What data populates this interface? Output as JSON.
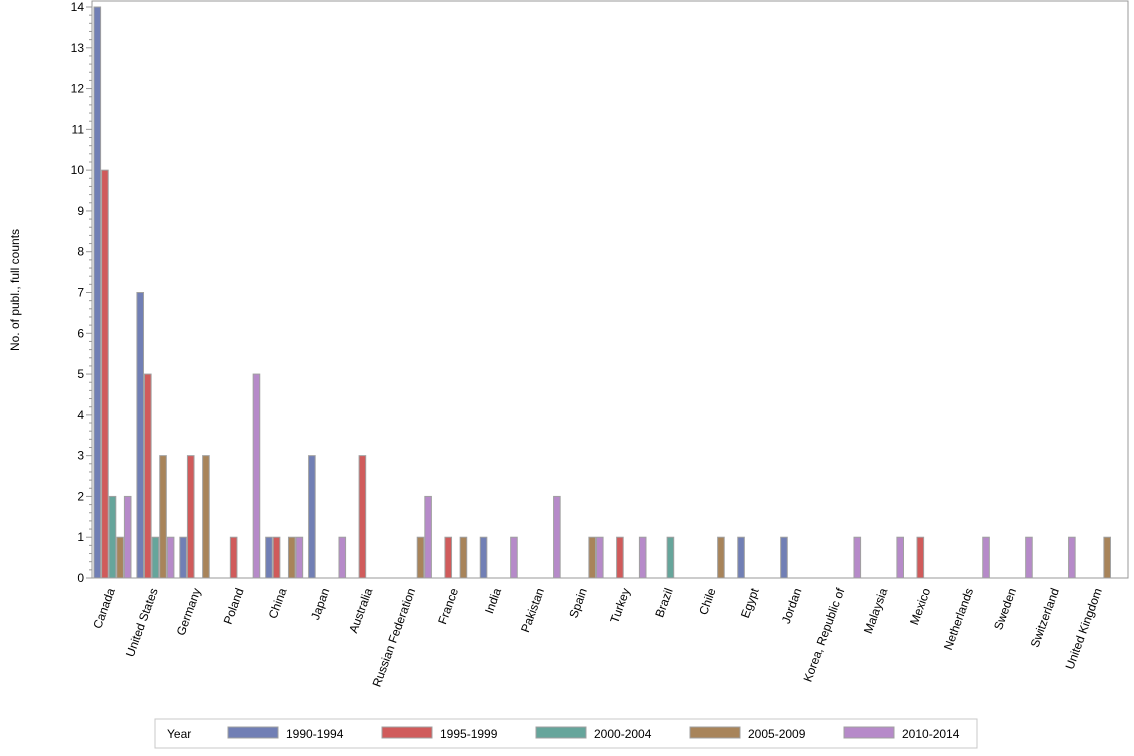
{
  "chart_data": {
    "type": "bar",
    "title": "",
    "xlabel": "",
    "ylabel": "No. of publ., full counts",
    "ylim": [
      0,
      14
    ],
    "y_ticks": [
      0,
      1,
      2,
      3,
      4,
      5,
      6,
      7,
      8,
      9,
      10,
      11,
      12,
      13,
      14
    ],
    "grid": false,
    "legend_position": "bottom",
    "legend_title": "Year",
    "categories": [
      "Canada",
      "United States",
      "Germany",
      "Poland",
      "China",
      "Japan",
      "Australia",
      "Russian Federation",
      "France",
      "India",
      "Pakistan",
      "Spain",
      "Turkey",
      "Brazil",
      "Chile",
      "Egypt",
      "Jordan",
      "Korea, Republic of",
      "Malaysia",
      "Mexico",
      "Netherlands",
      "Sweden",
      "Switzerland",
      "United Kingdom"
    ],
    "series": [
      {
        "name": "1990-1994",
        "color": "#717fb5",
        "values": [
          14,
          7,
          1,
          0,
          1,
          3,
          0,
          0,
          0,
          1,
          0,
          0,
          0,
          0,
          0,
          1,
          1,
          0,
          0,
          0,
          0,
          0,
          0,
          0
        ]
      },
      {
        "name": "1995-1999",
        "color": "#d05b5b",
        "values": [
          10,
          5,
          3,
          1,
          1,
          0,
          3,
          0,
          1,
          0,
          0,
          0,
          1,
          0,
          0,
          0,
          0,
          0,
          0,
          1,
          0,
          0,
          0,
          0
        ]
      },
      {
        "name": "2000-2004",
        "color": "#66a59b",
        "values": [
          2,
          1,
          0,
          0,
          0,
          0,
          0,
          0,
          0,
          0,
          0,
          0,
          0,
          1,
          0,
          0,
          0,
          0,
          0,
          0,
          0,
          0,
          0,
          0
        ]
      },
      {
        "name": "2005-2009",
        "color": "#a8845a",
        "values": [
          1,
          3,
          3,
          0,
          1,
          0,
          0,
          1,
          1,
          0,
          0,
          1,
          0,
          0,
          1,
          0,
          0,
          0,
          0,
          0,
          0,
          0,
          0,
          1
        ]
      },
      {
        "name": "2010-2014",
        "color": "#b68ac9",
        "values": [
          2,
          1,
          0,
          5,
          1,
          1,
          0,
          2,
          0,
          1,
          2,
          1,
          1,
          0,
          0,
          0,
          0,
          1,
          1,
          0,
          1,
          1,
          1,
          0
        ]
      }
    ]
  }
}
